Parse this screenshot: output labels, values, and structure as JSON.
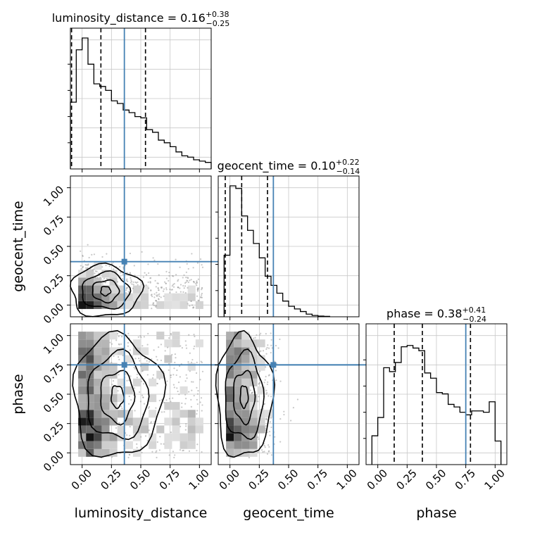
{
  "chart_data": {
    "type": "corner",
    "parameters": [
      "luminosity_distance",
      "geocent_time",
      "phase"
    ],
    "titles": [
      {
        "name": "luminosity_distance",
        "value": "0.16",
        "plus": "+0.38",
        "minus": "−0.25"
      },
      {
        "name": "geocent_time",
        "value": "0.10",
        "plus": "+0.22",
        "minus": "−0.14"
      },
      {
        "name": "phase",
        "value": "0.38",
        "plus": "+0.41",
        "minus": "−0.24"
      }
    ],
    "axis_range": [
      -0.1,
      1.1
    ],
    "tick_values": [
      0.0,
      0.25,
      0.5,
      0.75,
      1.0
    ],
    "tick_labels": [
      "0.00",
      "0.25",
      "0.50",
      "0.75",
      "1.00"
    ],
    "truths": [
      0.36,
      0.37,
      0.75
    ],
    "colors": {
      "truth": "#4682b4",
      "hist": "#000000",
      "points": "#9a9a9a",
      "grid": "#c8c8c8"
    },
    "grid": true,
    "diagonal_histograms": [
      {
        "param": "luminosity_distance",
        "bin_edges": [
          -0.1,
          -0.05,
          0.0,
          0.05,
          0.1,
          0.15,
          0.2,
          0.25,
          0.3,
          0.35,
          0.4,
          0.45,
          0.5,
          0.55,
          0.6,
          0.65,
          0.7,
          0.75,
          0.8,
          0.85,
          0.9,
          0.95,
          1.0,
          1.05,
          1.1
        ],
        "counts": [
          0.51,
          0.91,
          1.0,
          0.8,
          0.65,
          0.63,
          0.6,
          0.52,
          0.5,
          0.45,
          0.43,
          0.4,
          0.39,
          0.3,
          0.28,
          0.22,
          0.2,
          0.17,
          0.13,
          0.1,
          0.09,
          0.07,
          0.06,
          0.05
        ],
        "quantiles": [
          -0.09,
          0.16,
          0.54
        ]
      },
      {
        "param": "geocent_time",
        "bin_edges": [
          -0.05,
          0.0,
          0.05,
          0.1,
          0.15,
          0.2,
          0.25,
          0.3,
          0.35,
          0.4,
          0.45,
          0.5,
          0.55,
          0.6,
          0.65,
          0.7,
          0.75,
          0.8,
          0.85
        ],
        "counts": [
          0.47,
          1.0,
          0.98,
          0.77,
          0.66,
          0.56,
          0.45,
          0.31,
          0.24,
          0.18,
          0.12,
          0.08,
          0.06,
          0.04,
          0.02,
          0.01,
          0.005,
          0.003
        ],
        "quantiles": [
          -0.04,
          0.1,
          0.32
        ]
      },
      {
        "param": "phase",
        "bin_edges": [
          -0.05,
          0.0,
          0.05,
          0.1,
          0.15,
          0.2,
          0.25,
          0.3,
          0.35,
          0.4,
          0.45,
          0.5,
          0.55,
          0.6,
          0.65,
          0.7,
          0.75,
          0.8,
          0.85,
          0.9,
          0.95,
          1.0,
          1.05
        ],
        "counts": [
          0.22,
          0.36,
          0.74,
          0.71,
          0.78,
          0.9,
          0.91,
          0.89,
          0.87,
          0.7,
          0.66,
          0.55,
          0.54,
          0.46,
          0.44,
          0.4,
          0.38,
          0.41,
          0.41,
          0.4,
          0.48,
          0.18
        ],
        "quantiles": [
          0.14,
          0.38,
          0.79
        ]
      }
    ],
    "pair_panels": [
      {
        "x": "luminosity_distance",
        "y": "geocent_time"
      },
      {
        "x": "luminosity_distance",
        "y": "phase"
      },
      {
        "x": "geocent_time",
        "y": "phase"
      }
    ]
  }
}
